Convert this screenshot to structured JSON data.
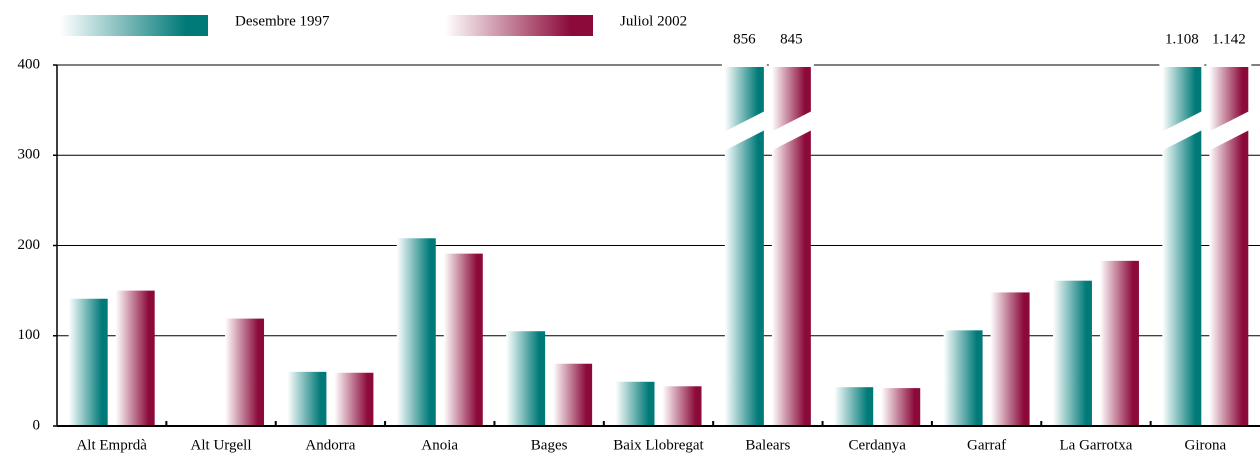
{
  "chart_data": {
    "type": "bar",
    "categories": [
      "Alt Emprdà",
      "Alt Urgell",
      "Andorra",
      "Anoia",
      "Bages",
      "Baix Llobregat",
      "Balears",
      "Cerdanya",
      "Garraf",
      "La Garrotxa",
      "Girona"
    ],
    "series": [
      {
        "name": "Desembre 1997",
        "color": "#007a78",
        "values": [
          141,
          1,
          60,
          208,
          105,
          49,
          856,
          43,
          106,
          161,
          1108
        ],
        "value_labels": [
          null,
          null,
          null,
          null,
          null,
          null,
          "856",
          null,
          null,
          null,
          "1.108"
        ]
      },
      {
        "name": "Juliol 2002",
        "color": "#8b0a3a",
        "values": [
          150,
          119,
          59,
          191,
          69,
          44,
          845,
          42,
          148,
          183,
          1142
        ],
        "value_labels": [
          null,
          null,
          null,
          null,
          null,
          null,
          "845",
          null,
          null,
          null,
          "1.142"
        ]
      }
    ],
    "ylim": [
      0,
      400
    ],
    "yticks": [
      0,
      100,
      200,
      300,
      400
    ],
    "grid": true
  }
}
